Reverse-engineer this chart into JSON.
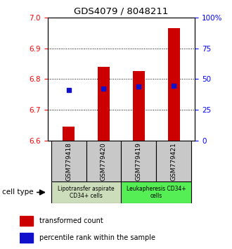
{
  "title": "GDS4079 / 8048211",
  "samples": [
    "GSM779418",
    "GSM779420",
    "GSM779419",
    "GSM779421"
  ],
  "bar_values": [
    6.645,
    6.84,
    6.825,
    6.965
  ],
  "bar_bottom": 6.6,
  "percentile_values": [
    6.765,
    6.77,
    6.775,
    6.778
  ],
  "ylim": [
    6.6,
    7.0
  ],
  "yticks_left": [
    6.6,
    6.7,
    6.8,
    6.9,
    7.0
  ],
  "yticks_right": [
    0,
    25,
    50,
    75,
    100
  ],
  "bar_color": "#cc0000",
  "blue_color": "#1111cc",
  "group1_label": "Lipotransfer aspirate\nCD34+ cells",
  "group2_label": "Leukapheresis CD34+\ncells",
  "group1_color": "#ccddbb",
  "group2_color": "#55ee55",
  "sample_box_color": "#c8c8c8",
  "cell_type_label": "cell type",
  "legend_red": "transformed count",
  "legend_blue": "percentile rank within the sample",
  "bar_width": 0.35,
  "x_positions": [
    0,
    1,
    2,
    3
  ]
}
